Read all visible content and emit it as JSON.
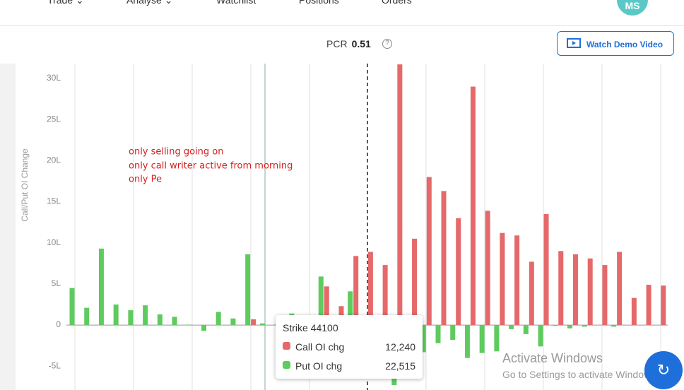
{
  "nav": [
    "Trade ⌄",
    "Analyse ⌄",
    "Watchlist",
    "Positions",
    "Orders"
  ],
  "avatar": "MS",
  "pcr": {
    "label": "PCR",
    "value": "0.51"
  },
  "demo_button": "Watch Demo Video",
  "tooltip": {
    "title": "Strike 44100",
    "rows": [
      [
        "Call OI chg",
        "12,240"
      ],
      [
        "Put OI chg",
        "22,515"
      ]
    ]
  },
  "watermark": [
    "Activate Windows",
    "Go to Settings to activate Windows."
  ],
  "chart_data": {
    "type": "bar",
    "y_label": "Call/Put OI Change",
    "annotations": [
      "only selling  going on",
      "only call writer active from morning",
      "only Pe"
    ],
    "categories": [
      null,
      null,
      null,
      null,
      null,
      null,
      null,
      null,
      null,
      null,
      null,
      null,
      null,
      null,
      null,
      null,
      null,
      null,
      null,
      null,
      null,
      null,
      null,
      null,
      null,
      null,
      null,
      null,
      null,
      null,
      null,
      null,
      null,
      null,
      null,
      null,
      null,
      null,
      null,
      null,
      null
    ],
    "series": [
      {
        "name": "Call OI chg",
        "color": "#e5696a",
        "values": [
          null,
          null,
          null,
          null,
          null,
          null,
          null,
          null,
          null,
          null,
          null,
          null,
          0.7,
          null,
          null,
          null,
          null,
          4.7,
          2.3,
          8.4,
          8.9,
          7.3,
          31.7,
          10.5,
          18.0,
          16.3,
          13.0,
          29.0,
          13.9,
          11.2,
          10.9,
          7.7,
          13.5,
          9.0,
          8.6,
          8.1,
          7.3,
          8.9,
          3.3,
          4.9,
          4.8
        ]
      },
      {
        "name": "Put OI chg",
        "color": "#5ecb5e",
        "values": [
          4.5,
          2.1,
          9.3,
          2.5,
          1.8,
          2.4,
          1.3,
          1.0,
          0.05,
          -0.7,
          1.6,
          0.8,
          8.6,
          0.2,
          0.1,
          1.4,
          null,
          5.9,
          null,
          4.1,
          null,
          null,
          -7.3,
          null,
          -3.3,
          -2.2,
          -1.8,
          -4.0,
          -3.4,
          -3.2,
          -0.5,
          -1.1,
          -2.6,
          -0.1,
          -0.4,
          -0.2,
          null,
          -0.2,
          null,
          null,
          null
        ]
      }
    ],
    "ylim": [
      -7.9,
      31.8
    ],
    "yticks": [
      {
        "value": -5,
        "label": "-5L"
      },
      0,
      {
        "value": 5,
        "label": "5L"
      },
      {
        "value": 10,
        "label": "10L"
      },
      {
        "value": 15,
        "label": "15L"
      },
      {
        "value": 20,
        "label": "20L"
      },
      {
        "value": 25,
        "label": "25L"
      },
      {
        "value": 30,
        "label": "30L"
      }
    ]
  }
}
